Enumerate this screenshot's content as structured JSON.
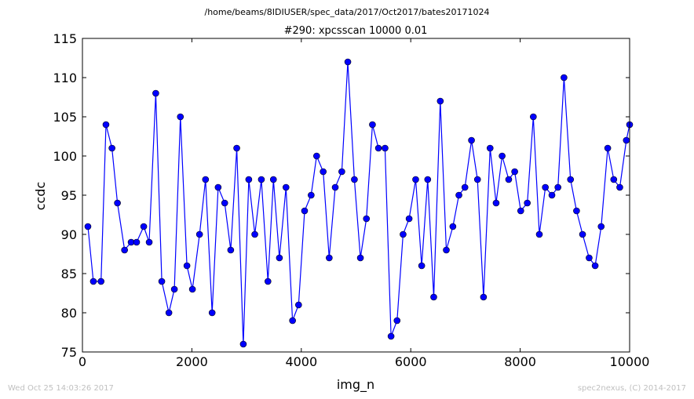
{
  "figure": {
    "supertitle": "/home/beams/8IDIUSER/spec_data/2017/Oct2017/bates20171024",
    "footer_left": "Wed Oct 25 14:03:26 2017",
    "footer_right": "spec2nexus, (C) 2014-2017"
  },
  "colors": {
    "series": "#0000ff",
    "axes": "#000000",
    "footer": "#c0c0c0"
  },
  "chart_data": {
    "type": "line",
    "title": "#290: xpcsscan 10000 0.01",
    "xlabel": "img_n",
    "ylabel": "ccdc",
    "xlim": [
      0,
      10000
    ],
    "ylim": [
      75,
      115
    ],
    "xticks": [
      0,
      2000,
      4000,
      6000,
      8000,
      10000
    ],
    "yticks": [
      75,
      80,
      85,
      90,
      95,
      100,
      105,
      110,
      115
    ],
    "xtick_labels": [
      "0",
      "2000",
      "4000",
      "6000",
      "8000",
      "10000"
    ],
    "ytick_labels": [
      "75",
      "80",
      "85",
      "90",
      "95",
      "100",
      "105",
      "110",
      "115"
    ],
    "grid": false,
    "markers": "circle",
    "series": [
      {
        "x": [
          100,
          200,
          340,
          430,
          540,
          640,
          770,
          890,
          990,
          1120,
          1220,
          1340,
          1450,
          1580,
          1680,
          1790,
          1910,
          2010,
          2140,
          2250,
          2370,
          2480,
          2600,
          2710,
          2820,
          2940,
          3040,
          3150,
          3270,
          3390,
          3490,
          3600,
          3720,
          3840,
          3950,
          4060,
          4180,
          4280,
          4400,
          4510,
          4620,
          4740,
          4850,
          4970,
          5080,
          5190,
          5300,
          5410,
          5530,
          5640,
          5750,
          5860,
          5970,
          6090,
          6200,
          6310,
          6420,
          6540,
          6650,
          6770,
          6880,
          6990,
          7110,
          7220,
          7330,
          7450,
          7560,
          7670,
          7790,
          7900,
          8010,
          8130,
          8240,
          8350,
          8460,
          8580,
          8690,
          8800,
          8920,
          9030,
          9140,
          9260,
          9370,
          9480,
          9600,
          9710,
          9820,
          9940,
          10000
        ],
        "values": [
          91,
          84,
          84,
          104,
          101,
          94,
          88,
          89,
          89,
          91,
          89,
          108,
          84,
          80,
          83,
          105,
          86,
          83,
          90,
          97,
          80,
          96,
          94,
          88,
          101,
          76,
          97,
          90,
          97,
          84,
          97,
          87,
          96,
          79,
          81,
          93,
          95,
          100,
          98,
          87,
          96,
          98,
          112,
          97,
          87,
          92,
          104,
          101,
          101,
          77,
          79,
          90,
          92,
          97,
          86,
          97,
          82,
          107,
          88,
          91,
          95,
          96,
          102,
          97,
          82,
          101,
          94,
          100,
          97,
          98,
          93,
          94,
          105,
          90,
          96,
          95,
          96,
          110,
          97,
          93,
          90,
          87,
          86,
          91,
          101,
          97,
          96,
          102,
          104
        ]
      }
    ]
  }
}
